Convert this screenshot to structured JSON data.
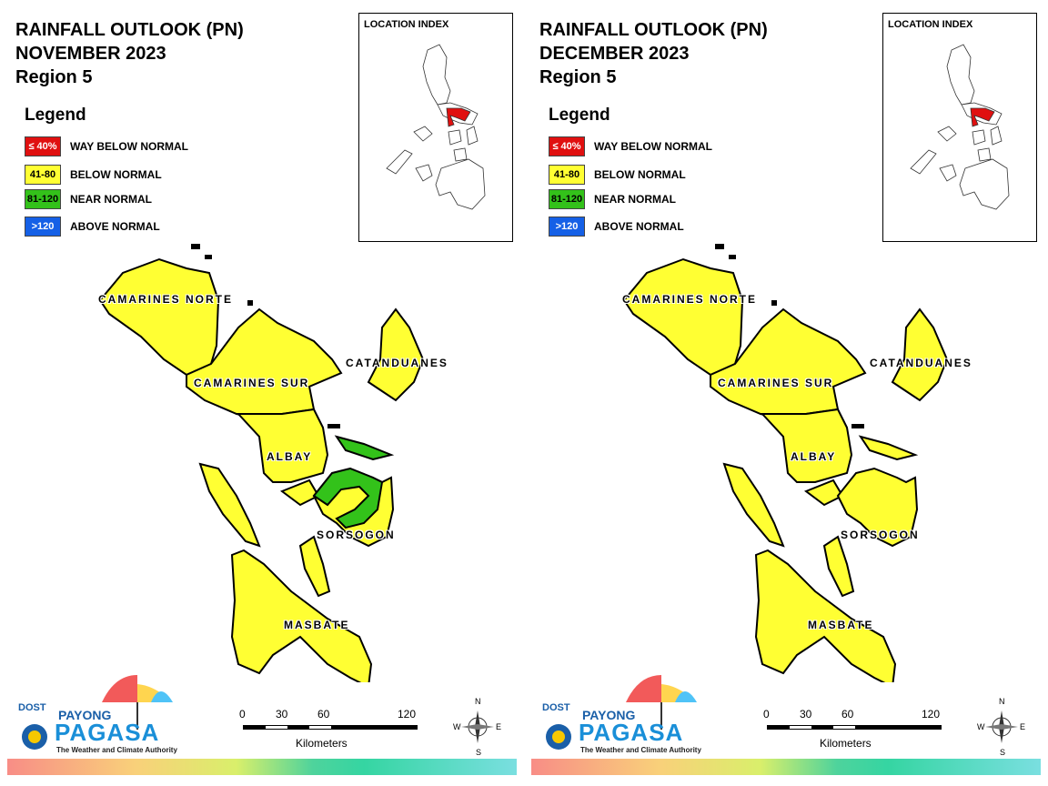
{
  "maps": [
    {
      "title_line1": "RAINFALL OUTLOOK (PN)",
      "title_line2": "NOVEMBER 2023",
      "title_line3": "Region 5",
      "sorsogon_category": "near",
      "albay_east_category": "near"
    },
    {
      "title_line1": "RAINFALL OUTLOOK (PN)",
      "title_line2": "DECEMBER 2023",
      "title_line3": "Region 5",
      "sorsogon_category": "below",
      "albay_east_category": "below"
    }
  ],
  "legend": {
    "title": "Legend",
    "items": [
      {
        "range": "≤ 40%",
        "label": "WAY BELOW NORMAL",
        "color": "#e01010",
        "text_color": "#ffffff"
      },
      {
        "range": "41-80",
        "label": "BELOW NORMAL",
        "color": "#ffff33",
        "text_color": "#000000"
      },
      {
        "range": "81-120",
        "label": "NEAR NORMAL",
        "color": "#33c21a",
        "text_color": "#000000"
      },
      {
        "range": ">120",
        "label": "ABOVE NORMAL",
        "color": "#1560e6",
        "text_color": "#ffffff"
      }
    ]
  },
  "location_index": {
    "label": "LOCATION INDEX"
  },
  "provinces": {
    "camarines_norte": "CAMARINES NORTE",
    "catanduanes": "CATANDUANES",
    "camarines_sur": "CAMARINES SUR",
    "albay": "ALBAY",
    "sorsogon": "SORSOGON",
    "masbate": "MASBATE"
  },
  "scale_bar": {
    "ticks": [
      "0",
      "30",
      "60",
      "120"
    ],
    "unit": "Kilometers"
  },
  "compass": {
    "n": "N",
    "s": "S",
    "e": "E",
    "w": "W"
  },
  "logo": {
    "dost": "DOST",
    "payong": "PAYONG",
    "pagasa": "PAGASA",
    "tagline": "The Weather and Climate Authority"
  },
  "colors": {
    "below_normal": "#ffff33",
    "near_normal": "#33c21a",
    "way_below": "#e01010",
    "above_normal": "#1560e6"
  }
}
